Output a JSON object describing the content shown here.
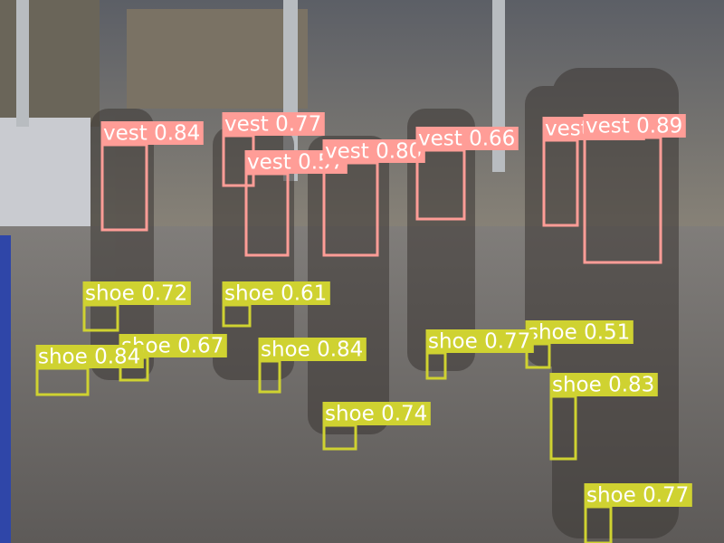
{
  "detections": [
    "vest 0.84",
    "vest 0.77",
    "vest 0.57",
    "vest 0.80",
    "vest 0.66",
    "vest 0.61",
    "vest 0.89",
    "shoe 0.72",
    "shoe 0.67",
    "shoe 0.84",
    "shoe 0.61",
    "shoe 0.84",
    "shoe 0.74",
    "shoe 0.51",
    "shoe 0.77",
    "shoe 0.83",
    "shoe 0.77"
  ]
}
